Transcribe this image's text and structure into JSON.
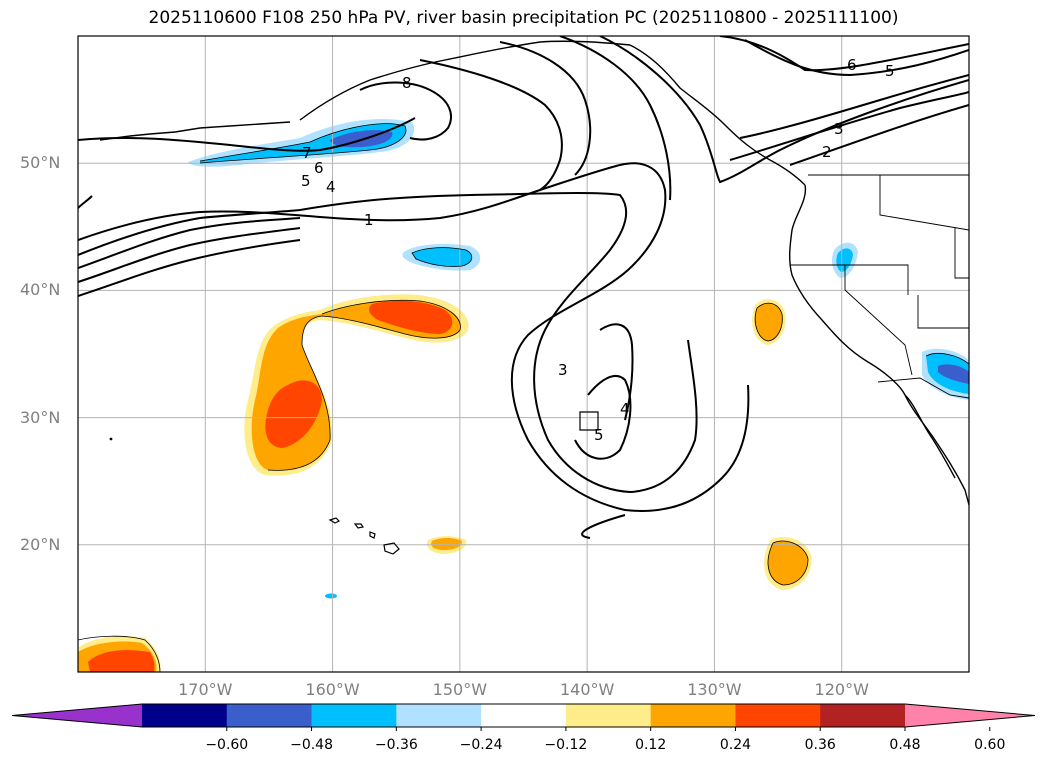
{
  "title": "2025110600 F108 250 hPa PV, river basin precipitation PC (2025110800 - 2025111100)",
  "map": {
    "extent": {
      "lon_min": -180,
      "lon_max": -110,
      "lat_min": 10,
      "lat_max": 60
    },
    "lat_ticks": [
      {
        "value": 50,
        "label": "50°N"
      },
      {
        "value": 40,
        "label": "40°N"
      },
      {
        "value": 30,
        "label": "30°N"
      },
      {
        "value": 20,
        "label": "20°N"
      }
    ],
    "lon_ticks": [
      {
        "value": -170,
        "label": "170°W"
      },
      {
        "value": -160,
        "label": "160°W"
      },
      {
        "value": -150,
        "label": "150°W"
      },
      {
        "value": -140,
        "label": "140°W"
      },
      {
        "value": -130,
        "label": "130°W"
      },
      {
        "value": -120,
        "label": "120°W"
      }
    ],
    "gridlines": true,
    "contour_labels": [
      "7",
      "6",
      "5",
      "4",
      "1",
      "8",
      "6",
      "5",
      "3",
      "2",
      "3",
      "4",
      "5"
    ]
  },
  "colorbar": {
    "colors": [
      "#9932cc",
      "#00008b",
      "#3a5fcd",
      "#00bfff",
      "#b0e2ff",
      "#ffffff",
      "#ffec8b",
      "#ffa500",
      "#ff4500",
      "#b22222",
      "#ff82ab"
    ],
    "ticks": [
      {
        "value": -0.6,
        "label": "−0.60"
      },
      {
        "value": -0.48,
        "label": "−0.48"
      },
      {
        "value": -0.36,
        "label": "−0.36"
      },
      {
        "value": -0.24,
        "label": "−0.24"
      },
      {
        "value": -0.12,
        "label": "−0.12"
      },
      {
        "value": 0.12,
        "label": "0.12"
      },
      {
        "value": 0.24,
        "label": "0.24"
      },
      {
        "value": 0.36,
        "label": "0.36"
      },
      {
        "value": 0.48,
        "label": "0.48"
      },
      {
        "value": 0.6,
        "label": "0.60"
      }
    ],
    "extend": "both"
  }
}
